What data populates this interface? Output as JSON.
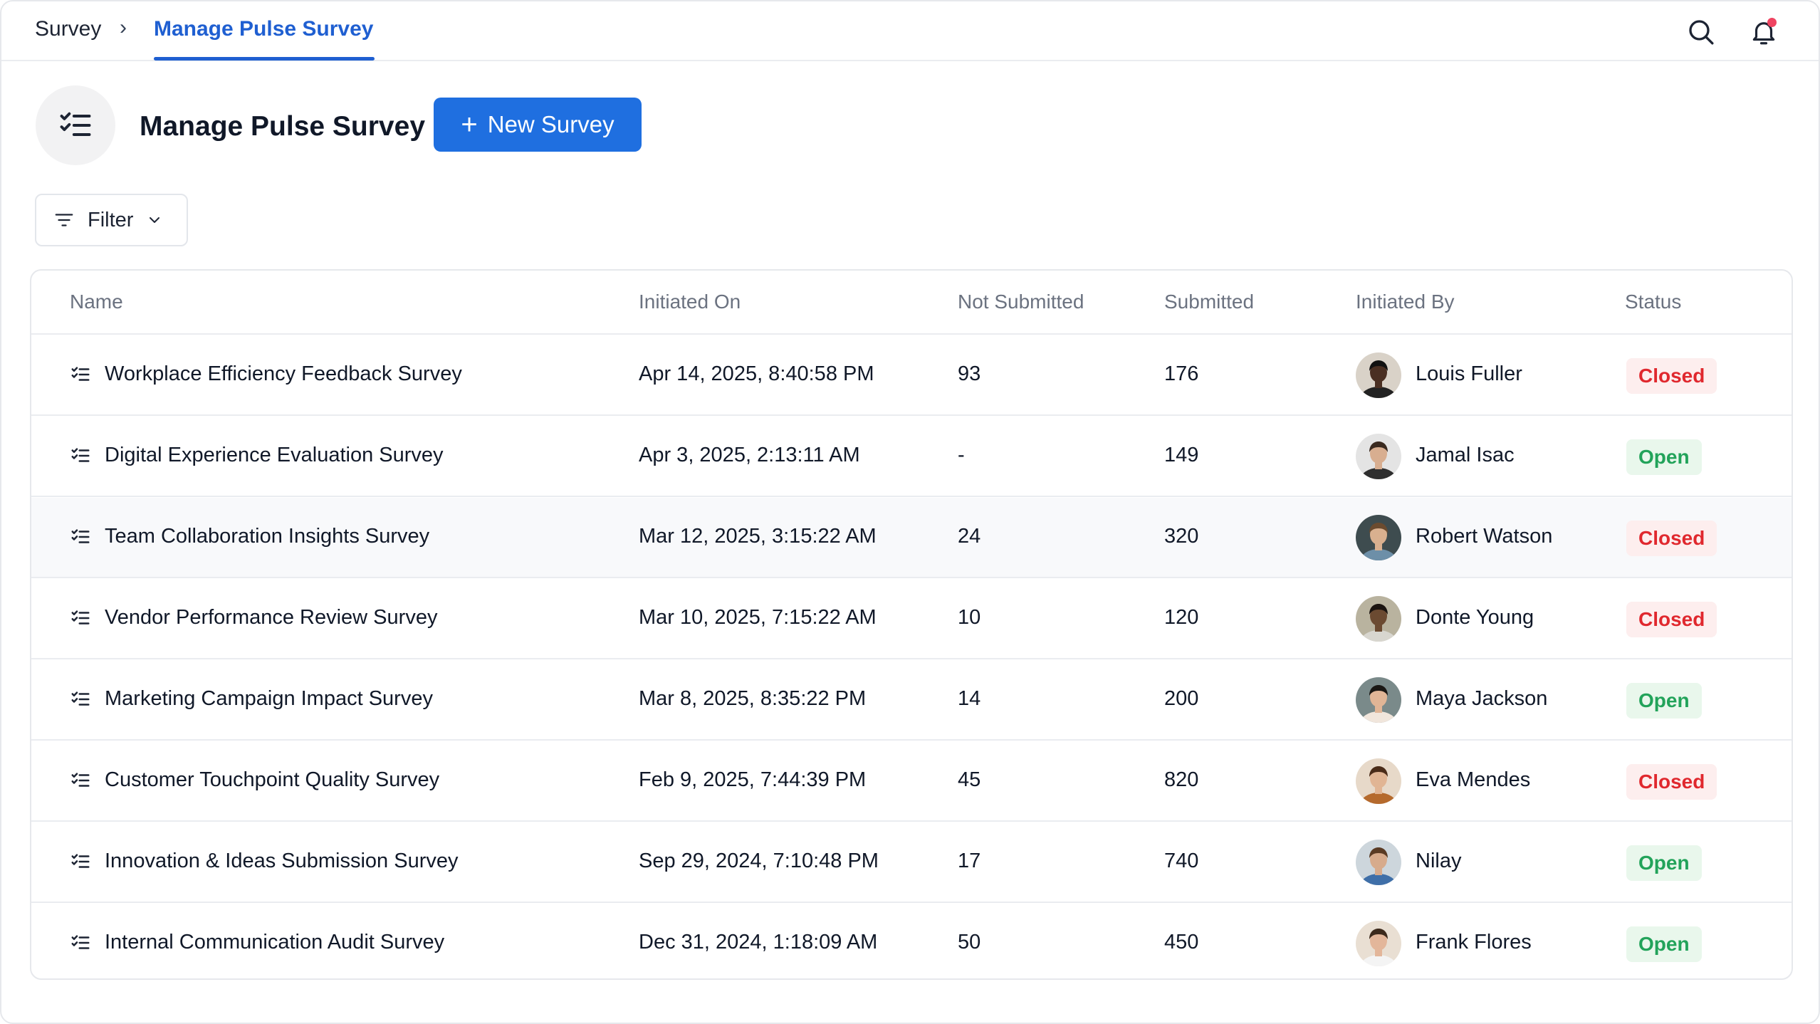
{
  "breadcrumb": {
    "root": "Survey",
    "separator": "›",
    "current": "Manage Pulse Survey"
  },
  "header": {
    "title": "Manage Pulse Survey",
    "new_button": "New Survey"
  },
  "filter": {
    "label": "Filter"
  },
  "table": {
    "columns": [
      "Name",
      "Initiated On",
      "Not Submitted",
      "Submitted",
      "Initiated By",
      "Status"
    ],
    "rows": [
      {
        "name": "Workplace Efficiency Feedback Survey",
        "initiated_on": "Apr 14, 2025, 8:40:58 PM",
        "not_submitted": "93",
        "submitted": "176",
        "initiated_by": "Louis Fuller",
        "status": "Closed"
      },
      {
        "name": "Digital Experience Evaluation Survey",
        "initiated_on": "Apr 3, 2025, 2:13:11 AM",
        "not_submitted": "-",
        "submitted": "149",
        "initiated_by": "Jamal Isac",
        "status": "Open"
      },
      {
        "name": "Team Collaboration Insights Survey",
        "initiated_on": "Mar 12, 2025, 3:15:22 AM",
        "not_submitted": "24",
        "submitted": "320",
        "initiated_by": "Robert Watson",
        "status": "Closed"
      },
      {
        "name": "Vendor Performance Review Survey",
        "initiated_on": "Mar 10, 2025, 7:15:22 AM",
        "not_submitted": "10",
        "submitted": "120",
        "initiated_by": "Donte Young",
        "status": "Closed"
      },
      {
        "name": "Marketing Campaign Impact Survey",
        "initiated_on": "Mar 8, 2025, 8:35:22 PM",
        "not_submitted": "14",
        "submitted": "200",
        "initiated_by": "Maya Jackson",
        "status": "Open"
      },
      {
        "name": "Customer Touchpoint Quality Survey",
        "initiated_on": "Feb 9, 2025, 7:44:39 PM",
        "not_submitted": "45",
        "submitted": "820",
        "initiated_by": "Eva Mendes",
        "status": "Closed"
      },
      {
        "name": "Innovation & Ideas Submission Survey",
        "initiated_on": "Sep 29, 2024, 7:10:48 PM",
        "not_submitted": "17",
        "submitted": "740",
        "initiated_by": "Nilay",
        "status": "Open"
      },
      {
        "name": "Internal Communication Audit Survey",
        "initiated_on": "Dec 31, 2024, 1:18:09 AM",
        "not_submitted": "50",
        "submitted": "450",
        "initiated_by": "Frank Flores",
        "status": "Open"
      }
    ]
  },
  "colors": {
    "accent": "#1f6fe0",
    "link": "#1f5fd1",
    "closed": "#e0282e",
    "open": "#22a35a",
    "notification": "#ef4461"
  },
  "icons": {
    "search": "search-icon",
    "bell": "bell-icon",
    "checklist": "checklist-icon",
    "filter": "filter-icon",
    "chevron": "chevron-down-icon",
    "plus": "plus-icon"
  },
  "avatars": [
    {
      "skin": "#4a2f22",
      "hair": "#111111",
      "shirt": "#222222",
      "bg": "#d9d2c8"
    },
    {
      "skin": "#d8ae90",
      "hair": "#3a2a1f",
      "shirt": "#2f2f2f",
      "bg": "#e4e4e4"
    },
    {
      "skin": "#d9b08f",
      "hair": "#6b4b2f",
      "shirt": "#6d8fa8",
      "bg": "#3e4c4f"
    },
    {
      "skin": "#6b4a31",
      "hair": "#1b1410",
      "shirt": "#d8d6cf",
      "bg": "#b9b39f"
    },
    {
      "skin": "#e0b596",
      "hair": "#1a1714",
      "shirt": "#f1e6dc",
      "bg": "#7a8a8a"
    },
    {
      "skin": "#e1b594",
      "hair": "#4a2b18",
      "shirt": "#b56a2d",
      "bg": "#e7d9c9"
    },
    {
      "skin": "#d7ab8c",
      "hair": "#5a3b24",
      "shirt": "#3f6fa8",
      "bg": "#cdd6dc"
    },
    {
      "skin": "#e3b69a",
      "hair": "#3d2a1c",
      "shirt": "#f4f4f4",
      "bg": "#e9dfd3"
    }
  ]
}
